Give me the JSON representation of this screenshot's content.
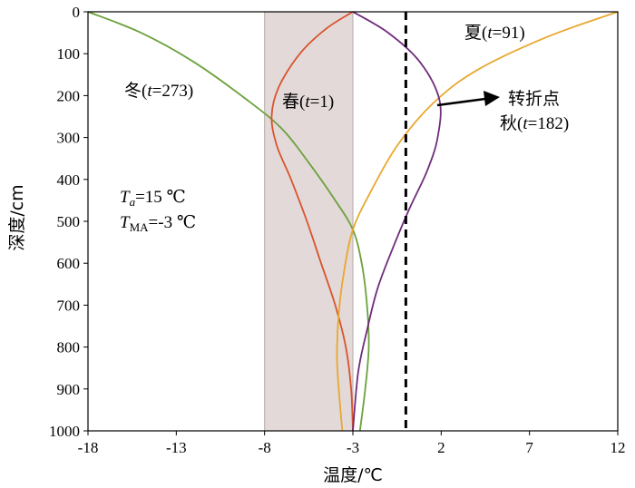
{
  "chart_data": {
    "type": "line",
    "xlabel": "温度/℃",
    "ylabel": "深度/cm",
    "xlim": [
      -18,
      12
    ],
    "ylim": [
      0,
      1000
    ],
    "y_inverted": true,
    "x_ticks": [
      "-18",
      "-13",
      "-8",
      "-3",
      "2",
      "7",
      "12"
    ],
    "y_ticks": [
      "0",
      "100",
      "200",
      "300",
      "400",
      "500",
      "600",
      "700",
      "800",
      "900",
      "1000"
    ],
    "shaded_band": {
      "x_range": [
        -8,
        -3
      ],
      "color": "#e3d9d8"
    },
    "reference_line": {
      "x": 0,
      "style": "dashed",
      "color": "#000000"
    },
    "series": [
      {
        "name": "冬",
        "t": "273",
        "color": "#6ba13c",
        "points": [
          [
            -18,
            0
          ],
          [
            -15,
            50
          ],
          [
            -12,
            120
          ],
          [
            -9,
            210
          ],
          [
            -7,
            280
          ],
          [
            -5.5,
            360
          ],
          [
            -4,
            450
          ],
          [
            -3,
            520
          ],
          [
            -2.5,
            600
          ],
          [
            -2.2,
            700
          ],
          [
            -2.1,
            800
          ],
          [
            -2.3,
            900
          ],
          [
            -2.6,
            1000
          ]
        ]
      },
      {
        "name": "春",
        "t": "1",
        "color": "#d8542c",
        "points": [
          [
            -3,
            0
          ],
          [
            -4.5,
            40
          ],
          [
            -6,
            100
          ],
          [
            -7.2,
            180
          ],
          [
            -7.6,
            250
          ],
          [
            -7.3,
            320
          ],
          [
            -6.5,
            400
          ],
          [
            -5.6,
            500
          ],
          [
            -4.8,
            600
          ],
          [
            -4,
            700
          ],
          [
            -3.4,
            800
          ],
          [
            -3.1,
            900
          ],
          [
            -3,
            1000
          ]
        ]
      },
      {
        "name": "夏",
        "t": "91",
        "color": "#e8a830",
        "points": [
          [
            12,
            0
          ],
          [
            8,
            60
          ],
          [
            4,
            140
          ],
          [
            1.5,
            220
          ],
          [
            -0.5,
            320
          ],
          [
            -2,
            430
          ],
          [
            -3,
            520
          ],
          [
            -3.5,
            620
          ],
          [
            -3.8,
            720
          ],
          [
            -3.9,
            820
          ],
          [
            -3.8,
            900
          ],
          [
            -3.6,
            1000
          ]
        ]
      },
      {
        "name": "秋",
        "t": "182",
        "color": "#6f2d7c",
        "points": [
          [
            -3,
            0
          ],
          [
            -1,
            50
          ],
          [
            0.8,
            120
          ],
          [
            1.9,
            210
          ],
          [
            1.8,
            300
          ],
          [
            1.2,
            380
          ],
          [
            0.2,
            470
          ],
          [
            -0.7,
            560
          ],
          [
            -1.6,
            660
          ],
          [
            -2.2,
            760
          ],
          [
            -2.7,
            860
          ],
          [
            -3,
            1000
          ]
        ]
      }
    ],
    "annotations": {
      "turning_point": "转折点",
      "ta_text": "=15 ℃",
      "tma_text": "=-3 ℃",
      "t_symbol": "t",
      "T_symbol": "T",
      "ta_sub": "a",
      "tma_sub": "MA"
    }
  }
}
